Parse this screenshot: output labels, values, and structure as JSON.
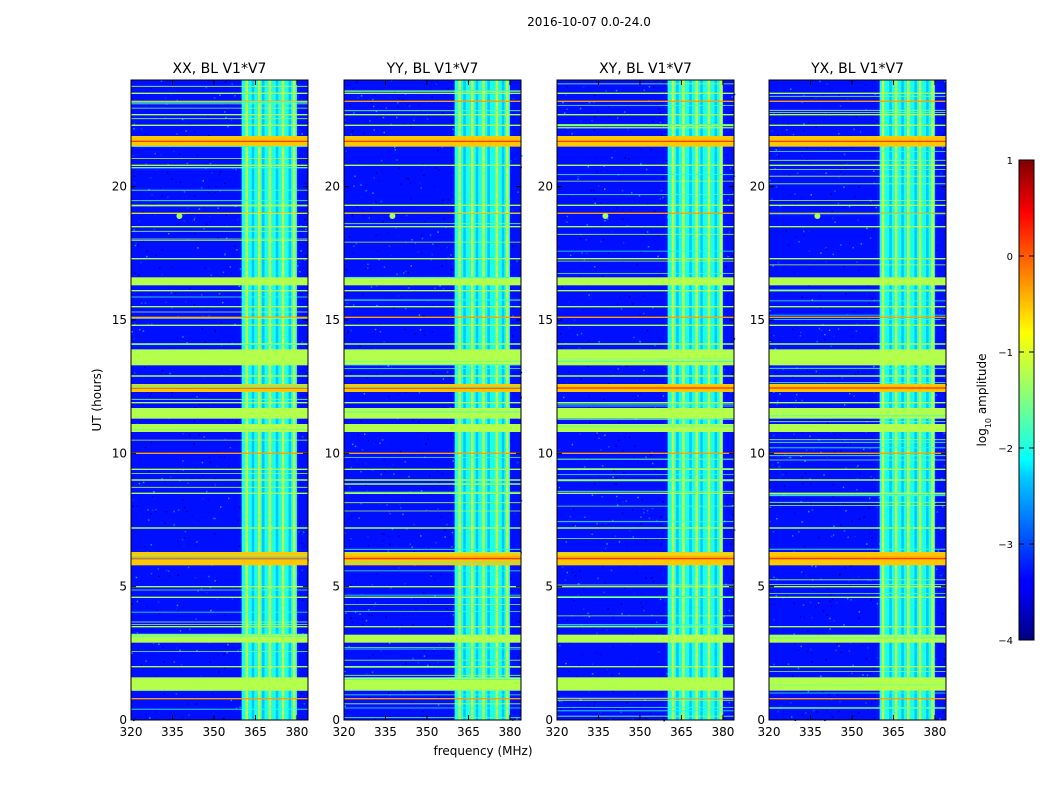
{
  "chart_data": {
    "type": "heatmap",
    "suptitle": "2016-10-07 0.0-24.0",
    "xlabel": "frequency (MHz)",
    "ylabel": "UT (hours)",
    "xlim": [
      320,
      384
    ],
    "ylim": [
      0,
      24
    ],
    "xticks": [
      "320",
      "335",
      "350",
      "365",
      "380"
    ],
    "yticks": [
      "0",
      "5",
      "10",
      "15",
      "20"
    ],
    "panels": [
      {
        "title": "XX, BL V1*V7",
        "polarization": "XX"
      },
      {
        "title": "YY, BL V1*V7",
        "polarization": "YY"
      },
      {
        "title": "XY, BL V1*V7",
        "polarization": "XY"
      },
      {
        "title": "YX, BL V1*V7",
        "polarization": "YX"
      }
    ],
    "colorbar": {
      "label": "log10 amplitude",
      "label_prefix": "log",
      "label_sub": "10",
      "label_suffix": " amplitude",
      "range": [
        -4,
        1
      ],
      "ticks": [
        "1",
        "0",
        "−1",
        "−2",
        "−3",
        "−4"
      ],
      "colormap": "jet"
    },
    "features": {
      "background_level": -3.3,
      "rfi_band_mhz": [
        360,
        380
      ],
      "flagged_time_bands_ut": [
        [
          1.1,
          1.6
        ],
        [
          2.9,
          3.2
        ],
        [
          5.8,
          6.3
        ],
        [
          10.8,
          11.1
        ],
        [
          11.3,
          11.7
        ],
        [
          12.3,
          12.6
        ],
        [
          13.3,
          13.9
        ],
        [
          16.3,
          16.6
        ],
        [
          21.5,
          21.9
        ]
      ],
      "strong_lines_ut": [
        0.8,
        2.0,
        3.5,
        4.6,
        5.0,
        6.1,
        7.2,
        8.5,
        9.0,
        9.4,
        10.0,
        11.9,
        12.9,
        14.1,
        14.8,
        15.1,
        15.5,
        16.1,
        17.3,
        18.5,
        19.0,
        19.3,
        20.8,
        22.3,
        22.7,
        23.2,
        23.5
      ]
    }
  }
}
